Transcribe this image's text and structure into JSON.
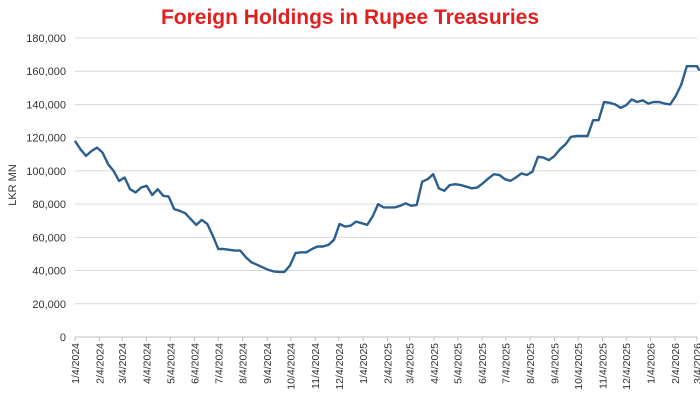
{
  "chart_data": {
    "type": "line",
    "title": "Foreign Holdings in Rupee Treasuries",
    "xlabel": "",
    "ylabel": "LKR MN",
    "ylim": [
      0,
      180000
    ],
    "yticks": [
      "0",
      "20,000",
      "40,000",
      "60,000",
      "80,000",
      "100,000",
      "120,000",
      "140,000",
      "160,000",
      "180,000"
    ],
    "ytick_values": [
      0,
      20000,
      40000,
      60000,
      80000,
      100000,
      120000,
      140000,
      160000,
      180000
    ],
    "xlim": [
      "2024-01-04",
      "2026-03-04"
    ],
    "xticks": [
      "1/4/2024",
      "2/4/2024",
      "3/4/2024",
      "4/4/2024",
      "5/4/2024",
      "6/4/2024",
      "7/4/2024",
      "8/4/2024",
      "9/4/2024",
      "10/4/2024",
      "11/4/2024",
      "12/4/2024",
      "1/4/2025",
      "2/4/2025",
      "3/4/2025",
      "4/4/2025",
      "5/4/2025",
      "6/4/2025",
      "7/4/2025",
      "8/4/2025",
      "9/4/2025",
      "10/4/2025",
      "11/4/2025",
      "12/4/2025",
      "1/4/2026",
      "2/4/2026",
      "3/4/2026"
    ],
    "grid": true,
    "line_color": "#2a5f8f",
    "series": [
      {
        "points": [
          [
            "2024-01-04",
            118000
          ],
          [
            "2024-01-11",
            113000
          ],
          [
            "2024-01-18",
            109000
          ],
          [
            "2024-01-25",
            112000
          ],
          [
            "2024-02-01",
            114000
          ],
          [
            "2024-02-08",
            111000
          ],
          [
            "2024-02-15",
            104000
          ],
          [
            "2024-02-22",
            100000
          ],
          [
            "2024-02-29",
            94000
          ],
          [
            "2024-03-07",
            96000
          ],
          [
            "2024-03-14",
            89000
          ],
          [
            "2024-03-21",
            87000
          ],
          [
            "2024-03-28",
            90000
          ],
          [
            "2024-04-04",
            91000
          ],
          [
            "2024-04-11",
            85500
          ],
          [
            "2024-04-18",
            89000
          ],
          [
            "2024-04-25",
            85000
          ],
          [
            "2024-05-02",
            84500
          ],
          [
            "2024-05-09",
            77000
          ],
          [
            "2024-05-16",
            76000
          ],
          [
            "2024-05-23",
            74500
          ],
          [
            "2024-05-30",
            71000
          ],
          [
            "2024-06-06",
            67500
          ],
          [
            "2024-06-13",
            70500
          ],
          [
            "2024-06-20",
            68000
          ],
          [
            "2024-06-27",
            61000
          ],
          [
            "2024-07-04",
            53000
          ],
          [
            "2024-07-11",
            53000
          ],
          [
            "2024-07-18",
            52500
          ],
          [
            "2024-07-25",
            52000
          ],
          [
            "2024-08-01",
            52000
          ],
          [
            "2024-08-08",
            48000
          ],
          [
            "2024-08-15",
            45000
          ],
          [
            "2024-08-22",
            43500
          ],
          [
            "2024-08-29",
            42000
          ],
          [
            "2024-09-05",
            40500
          ],
          [
            "2024-09-12",
            39500
          ],
          [
            "2024-09-19",
            39200
          ],
          [
            "2024-09-26",
            39200
          ],
          [
            "2024-10-03",
            43000
          ],
          [
            "2024-10-10",
            50500
          ],
          [
            "2024-10-17",
            51000
          ],
          [
            "2024-10-24",
            51000
          ],
          [
            "2024-10-31",
            53000
          ],
          [
            "2024-11-07",
            54500
          ],
          [
            "2024-11-14",
            54500
          ],
          [
            "2024-11-21",
            55500
          ],
          [
            "2024-11-28",
            58500
          ],
          [
            "2024-12-05",
            68000
          ],
          [
            "2024-12-12",
            66500
          ],
          [
            "2024-12-19",
            67000
          ],
          [
            "2024-12-26",
            69500
          ],
          [
            "2025-01-02",
            68500
          ],
          [
            "2025-01-09",
            67500
          ],
          [
            "2025-01-16",
            72500
          ],
          [
            "2025-01-23",
            80000
          ],
          [
            "2025-01-30",
            78000
          ],
          [
            "2025-02-06",
            78000
          ],
          [
            "2025-02-13",
            78000
          ],
          [
            "2025-02-20",
            79000
          ],
          [
            "2025-02-27",
            80500
          ],
          [
            "2025-03-06",
            79000
          ],
          [
            "2025-03-13",
            79500
          ],
          [
            "2025-03-20",
            93500
          ],
          [
            "2025-03-27",
            95000
          ],
          [
            "2025-04-03",
            98000
          ],
          [
            "2025-04-10",
            89500
          ],
          [
            "2025-04-17",
            88000
          ],
          [
            "2025-04-24",
            91500
          ],
          [
            "2025-05-01",
            92000
          ],
          [
            "2025-05-08",
            91500
          ],
          [
            "2025-05-15",
            90500
          ],
          [
            "2025-05-22",
            89500
          ],
          [
            "2025-05-29",
            90000
          ],
          [
            "2025-06-05",
            92500
          ],
          [
            "2025-06-12",
            95500
          ],
          [
            "2025-06-19",
            98000
          ],
          [
            "2025-06-26",
            97500
          ],
          [
            "2025-07-03",
            95000
          ],
          [
            "2025-07-10",
            94000
          ],
          [
            "2025-07-17",
            96000
          ],
          [
            "2025-07-24",
            98500
          ],
          [
            "2025-07-31",
            97500
          ],
          [
            "2025-08-07",
            99500
          ],
          [
            "2025-08-14",
            108500
          ],
          [
            "2025-08-21",
            108000
          ],
          [
            "2025-08-28",
            106500
          ],
          [
            "2025-09-04",
            109000
          ],
          [
            "2025-09-11",
            113000
          ],
          [
            "2025-09-18",
            116000
          ],
          [
            "2025-09-25",
            120500
          ],
          [
            "2025-10-02",
            121000
          ],
          [
            "2025-10-09",
            121000
          ],
          [
            "2025-10-16",
            121000
          ],
          [
            "2025-10-23",
            130500
          ],
          [
            "2025-10-30",
            130500
          ],
          [
            "2025-11-06",
            141500
          ],
          [
            "2025-11-13",
            141000
          ],
          [
            "2025-11-20",
            140000
          ],
          [
            "2025-11-27",
            138000
          ],
          [
            "2025-12-04",
            139500
          ],
          [
            "2025-12-11",
            143000
          ],
          [
            "2025-12-18",
            141500
          ],
          [
            "2025-12-25",
            142500
          ],
          [
            "2026-01-01",
            140500
          ],
          [
            "2026-01-08",
            141500
          ],
          [
            "2026-01-15",
            141500
          ],
          [
            "2026-01-22",
            140500
          ],
          [
            "2026-01-29",
            140000
          ],
          [
            "2026-02-05",
            145000
          ],
          [
            "2026-02-12",
            152000
          ],
          [
            "2026-02-19",
            163000
          ],
          [
            "2026-02-26",
            163000
          ],
          [
            "2026-03-04",
            163000
          ],
          [
            "2026-03-07",
            160500
          ]
        ]
      }
    ]
  }
}
